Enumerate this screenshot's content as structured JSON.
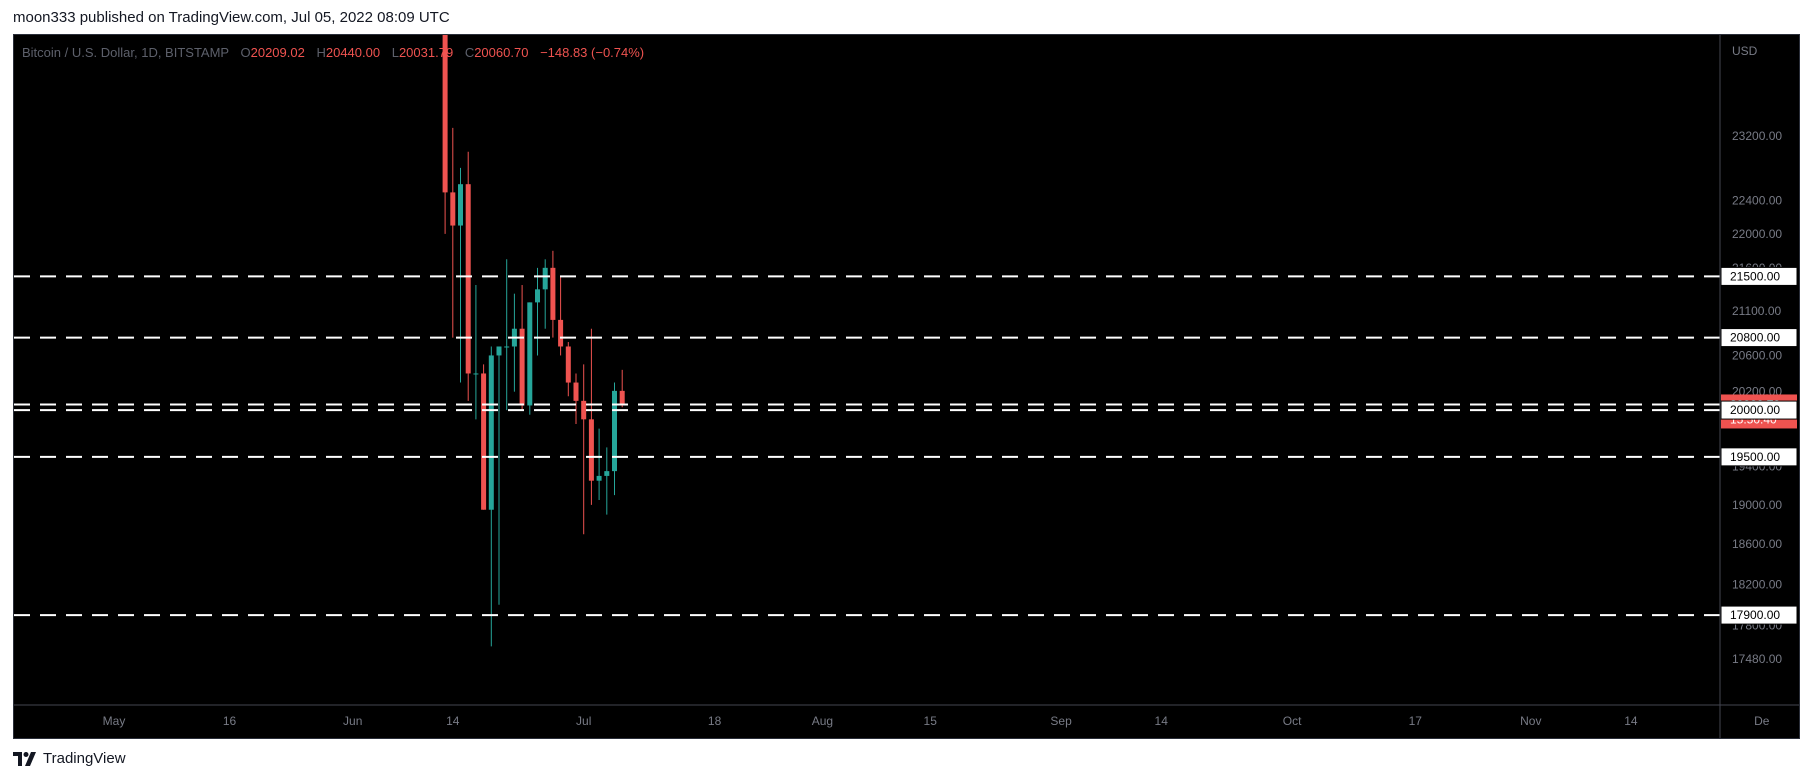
{
  "header": {
    "publish_line": "moon333 published on TradingView.com, Jul 05, 2022 08:09 UTC"
  },
  "footer": {
    "brand": "TradingView"
  },
  "colors": {
    "up": "#26a69a",
    "down": "#ef5350",
    "background": "#000000",
    "level_line": "#ffffff",
    "axis_text": "#787b86"
  },
  "chart_data": {
    "type": "candlestick",
    "symbol": "Bitcoin / U.S. Dollar, 1D, BITSTAMP",
    "ohlc_readout": {
      "open_label": "O",
      "open": "20209.02",
      "high_label": "H",
      "high": "20440.00",
      "low_label": "L",
      "low": "20031.79",
      "close_label": "C",
      "close": "20060.70",
      "change": "−148.83 (−0.74%)"
    },
    "currency": "USD",
    "y_scale": "log",
    "ylim": [
      17050,
      24500
    ],
    "y_ticks": [
      23200,
      22400,
      22000,
      21600,
      21100,
      20600,
      20200,
      19400,
      19000,
      18600,
      18200,
      17800,
      17480
    ],
    "x_ticks": [
      {
        "label": "18",
        "day": -14
      },
      {
        "label": "May",
        "day": 0
      },
      {
        "label": "16",
        "day": 15
      },
      {
        "label": "Jun",
        "day": 31
      },
      {
        "label": "14",
        "day": 44
      },
      {
        "label": "Jul",
        "day": 61
      },
      {
        "label": "18",
        "day": 78
      },
      {
        "label": "Aug",
        "day": 92
      },
      {
        "label": "15",
        "day": 106
      },
      {
        "label": "Sep",
        "day": 123
      },
      {
        "label": "14",
        "day": 136
      },
      {
        "label": "Oct",
        "day": 153
      },
      {
        "label": "17",
        "day": 169
      },
      {
        "label": "Nov",
        "day": 184
      },
      {
        "label": "14",
        "day": 197
      },
      {
        "label": "De",
        "day": 214
      }
    ],
    "levels": [
      {
        "price": 21500,
        "label": "21500.00"
      },
      {
        "price": 20800,
        "label": "20800.00"
      },
      {
        "price": 20060.7,
        "label": "20060.70",
        "countdown": "15:50:40",
        "current": true
      },
      {
        "price": 20000,
        "label": "20000.00"
      },
      {
        "price": 19500,
        "label": "19500.00"
      },
      {
        "price": 17900,
        "label": "17900.00"
      }
    ],
    "candles": [
      {
        "day": 43,
        "o": 25800,
        "h": 26500,
        "l": 22000,
        "c": 22500
      },
      {
        "day": 44,
        "o": 22500,
        "h": 23300,
        "l": 20800,
        "c": 22100
      },
      {
        "day": 45,
        "o": 22100,
        "h": 22800,
        "l": 20300,
        "c": 22600
      },
      {
        "day": 46,
        "o": 22600,
        "h": 23000,
        "l": 20100,
        "c": 20400
      },
      {
        "day": 47,
        "o": 20400,
        "h": 21400,
        "l": 19900,
        "c": 20400
      },
      {
        "day": 48,
        "o": 20400,
        "h": 20500,
        "l": 18950,
        "c": 18950
      },
      {
        "day": 49,
        "o": 18950,
        "h": 20700,
        "l": 17600,
        "c": 20600
      },
      {
        "day": 50,
        "o": 20600,
        "h": 20700,
        "l": 18000,
        "c": 20700
      },
      {
        "day": 51,
        "o": 20700,
        "h": 21700,
        "l": 20000,
        "c": 20700
      },
      {
        "day": 52,
        "o": 20700,
        "h": 21300,
        "l": 20200,
        "c": 20900
      },
      {
        "day": 53,
        "o": 20900,
        "h": 21400,
        "l": 20000,
        "c": 20050
      },
      {
        "day": 54,
        "o": 20050,
        "h": 21200,
        "l": 19950,
        "c": 21200
      },
      {
        "day": 55,
        "o": 21200,
        "h": 21600,
        "l": 20600,
        "c": 21350
      },
      {
        "day": 56,
        "o": 21350,
        "h": 21700,
        "l": 20900,
        "c": 21600
      },
      {
        "day": 57,
        "o": 21600,
        "h": 21800,
        "l": 20800,
        "c": 21000
      },
      {
        "day": 58,
        "o": 21000,
        "h": 21500,
        "l": 20600,
        "c": 20700
      },
      {
        "day": 59,
        "o": 20700,
        "h": 20750,
        "l": 20150,
        "c": 20300
      },
      {
        "day": 60,
        "o": 20300,
        "h": 20400,
        "l": 19850,
        "c": 20100
      },
      {
        "day": 61,
        "o": 20100,
        "h": 20500,
        "l": 18700,
        "c": 19900
      },
      {
        "day": 62,
        "o": 19900,
        "h": 20900,
        "l": 19000,
        "c": 19250
      },
      {
        "day": 63,
        "o": 19250,
        "h": 19800,
        "l": 19050,
        "c": 19300
      },
      {
        "day": 64,
        "o": 19300,
        "h": 19600,
        "l": 18900,
        "c": 19350
      },
      {
        "day": 65,
        "o": 19350,
        "h": 20300,
        "l": 19100,
        "c": 20209
      },
      {
        "day": 66,
        "o": 20209,
        "h": 20440,
        "l": 20031,
        "c": 20060
      }
    ]
  }
}
